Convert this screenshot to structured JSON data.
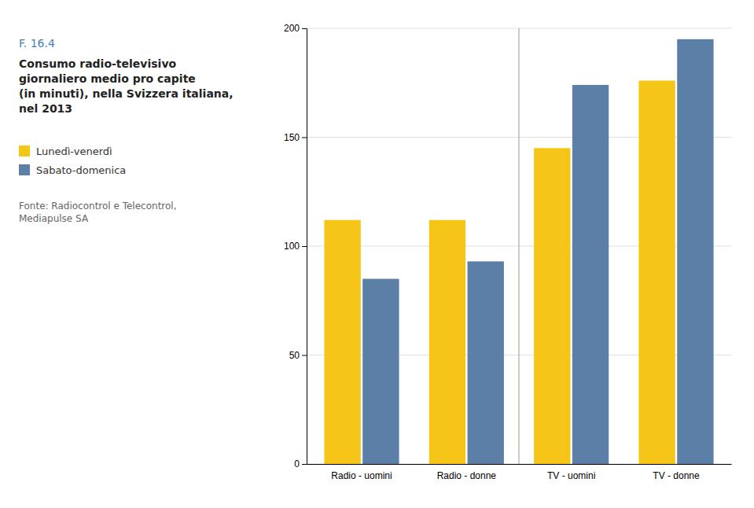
{
  "chart_data": {
    "type": "bar",
    "title": "Consumo radio-televisivo\ngiornaliero medio pro capite\n(in minuti), nella Svizzera italiana,\nnel 2013",
    "annotations": [
      "F. 16.4",
      "Fonte: Radiocontrol e Telecontrol,\nMediapulse SA"
    ],
    "categories": [
      "Radio - uomini",
      "Radio - donne",
      "TV - uomini",
      "TV - donne"
    ],
    "series": [
      {
        "name": "Lunedì-venerdì",
        "color": "#F5C518",
        "values": [
          112,
          112,
          145,
          176
        ]
      },
      {
        "name": "Sabato-domenica",
        "color": "#5B7FA6",
        "values": [
          85,
          93,
          174,
          195
        ]
      }
    ],
    "ylim": [
      0,
      200
    ],
    "yticks": [
      0,
      50,
      100,
      150,
      200
    ],
    "grid": true,
    "legend": "left"
  }
}
